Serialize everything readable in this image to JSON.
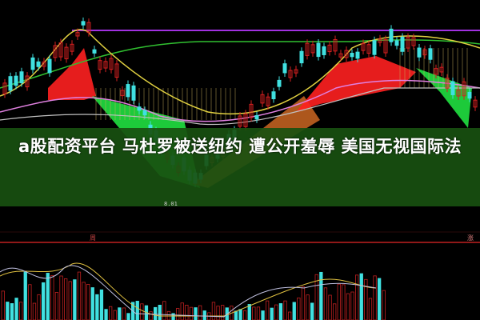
{
  "headline": "a股配资平台 马杜罗被送纽约 遭公开羞辱 美国无视国际法",
  "chart": {
    "low_price_label": "8.01",
    "volume_marker_left": "周",
    "volume_marker_right": "涨"
  },
  "colors": {
    "up": "#d42020",
    "down": "#40e0e0",
    "ribbon_up": "#ff2020",
    "ribbon_down": "#20e040",
    "banner": "#185010",
    "purple_line": "#a030e0",
    "green_line": "#30c030",
    "yellow_line": "#e0d040"
  }
}
